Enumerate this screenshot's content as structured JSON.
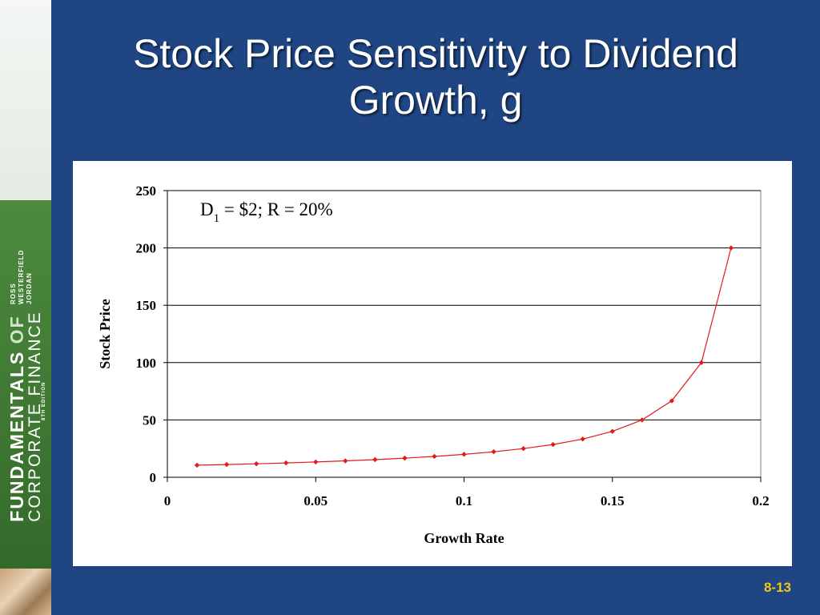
{
  "slide": {
    "title_line1": "Stock Price Sensitivity to Dividend",
    "title_line2": "Growth, g",
    "page_number": "8-13"
  },
  "sidebar": {
    "brand_line1_a": "FUNDAMENTALS ",
    "brand_line1_b": "OF",
    "brand_line2": "CORPORATE FINANCE",
    "authors": [
      "ROSS",
      "WESTERFIELD",
      "JORDAN"
    ],
    "edition": "8TH EDITION"
  },
  "chart_data": {
    "type": "line",
    "xlabel": "Growth Rate",
    "ylabel": "Stock Price",
    "annotation": {
      "base": "D",
      "sub": "1",
      "rest": " = $2; R = 20%"
    },
    "xlim": [
      0,
      0.2
    ],
    "ylim": [
      0,
      250
    ],
    "xticks": [
      0,
      0.05,
      0.1,
      0.15,
      0.2
    ],
    "yticks": [
      0,
      50,
      100,
      150,
      200,
      250
    ],
    "grid": "horizontal",
    "colors": {
      "series": "#e31a1c",
      "grid": "#000000"
    },
    "series": [
      {
        "x": [
          0.01,
          0.02,
          0.03,
          0.04,
          0.05,
          0.06,
          0.07,
          0.08,
          0.09,
          0.1,
          0.11,
          0.12,
          0.13,
          0.14,
          0.15,
          0.16,
          0.17,
          0.18,
          0.19
        ],
        "values": [
          10.53,
          11.11,
          11.76,
          12.5,
          13.33,
          14.29,
          15.38,
          16.67,
          18.18,
          20,
          22.22,
          25,
          28.57,
          33.33,
          40,
          50,
          66.67,
          100,
          200
        ]
      }
    ]
  }
}
